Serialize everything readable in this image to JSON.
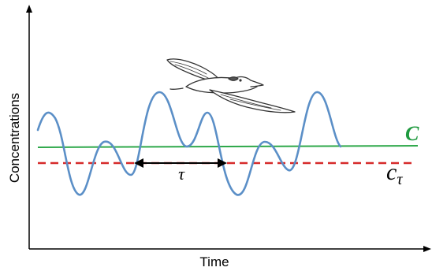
{
  "axes": {
    "xlabel": "Time",
    "ylabel": "Concentrations"
  },
  "labels": {
    "c_mean": "C",
    "c_threshold_main": "c",
    "c_threshold_sub": "τ",
    "tau": "τ"
  },
  "colors": {
    "signal": "#5b8fc7",
    "mean_line": "#2ea84a",
    "mean_label": "#1f9a3f",
    "threshold_line": "#d62a2a",
    "axis": "#000000"
  },
  "illustration": "flying-albatross"
}
